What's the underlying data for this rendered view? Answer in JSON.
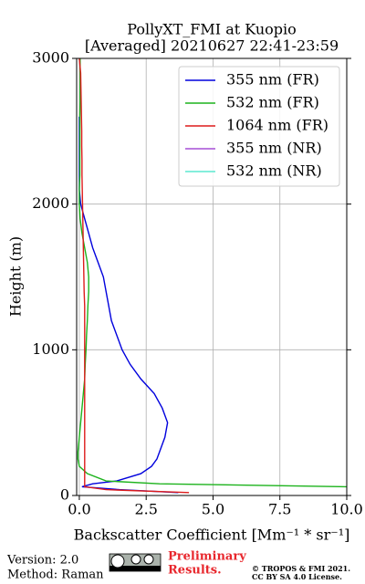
{
  "chart_data": {
    "type": "line",
    "title": [
      "PollyXT_FMI at Kuopio",
      "[Averaged] 20210627 22:41-23:59"
    ],
    "xlabel": "Backscatter Coefficient [Mm⁻¹ * sr⁻¹]",
    "ylabel": "Height (m)",
    "heights": [
      20,
      40,
      60,
      80,
      100,
      150,
      200,
      250,
      300,
      400,
      500,
      600,
      700,
      800,
      900,
      1000,
      1100,
      1200,
      1300,
      1400,
      1500,
      1600,
      1700,
      1800,
      1900,
      2000,
      2100,
      2200,
      2300,
      2400,
      2500,
      2600,
      2700,
      2800,
      2900,
      3000
    ],
    "series": [
      {
        "name": "355 nm (FR)",
        "color": "#0000dd",
        "values": [
          3.7,
          1.5,
          0.1,
          0.5,
          1.4,
          2.3,
          2.7,
          2.9,
          3.0,
          3.2,
          3.3,
          3.1,
          2.8,
          2.3,
          1.9,
          1.6,
          1.4,
          1.2,
          1.1,
          1.0,
          0.9,
          0.7,
          0.5,
          0.35,
          0.2,
          0.05,
          0,
          0,
          0,
          0,
          0,
          0,
          null,
          null,
          null,
          null
        ]
      },
      {
        "name": "532 nm (FR)",
        "color": "#1db31d",
        "values": [
          10.5,
          10.2,
          10.0,
          3.0,
          1.0,
          0.3,
          0.0,
          -0.05,
          -0.05,
          0.0,
          0.05,
          0.1,
          0.15,
          0.2,
          0.22,
          0.25,
          0.27,
          0.3,
          0.32,
          0.35,
          0.35,
          0.3,
          0.2,
          0.1,
          0.03,
          0.0,
          0.0,
          0.02,
          0.02,
          0.02,
          0.02,
          0.02,
          0.03,
          0.03,
          0.03,
          0.03
        ]
      },
      {
        "name": "1064 nm (FR)",
        "color": "#dd1c1c",
        "values": [
          4.1,
          1.0,
          0.2,
          0.2,
          0.2,
          0.2,
          0.2,
          0.2,
          0.2,
          0.2,
          0.2,
          0.2,
          0.2,
          0.2,
          0.2,
          0.2,
          0.2,
          0.2,
          0.2,
          0.18,
          0.17,
          0.16,
          0.15,
          0.14,
          0.13,
          0.12,
          0.11,
          0.1,
          0.1,
          0.09,
          0.09,
          0.08,
          0.07,
          0.06,
          0.05,
          0.0
        ]
      },
      {
        "name": "355 nm (NR)",
        "color": "#a64fd6",
        "values": [
          null,
          null,
          null,
          null,
          null,
          null,
          null,
          null,
          null,
          null,
          null,
          null,
          null,
          null,
          null,
          null,
          null,
          null,
          null,
          null,
          null,
          null,
          null,
          null,
          null,
          null,
          null,
          null,
          null,
          null,
          null,
          null,
          null,
          null,
          null,
          null
        ]
      },
      {
        "name": "532 nm (NR)",
        "color": "#5ce8d0",
        "values": [
          null,
          null,
          null,
          null,
          null,
          null,
          null,
          null,
          null,
          null,
          null,
          null,
          null,
          null,
          null,
          null,
          null,
          null,
          null,
          null,
          null,
          null,
          null,
          null,
          null,
          null,
          null,
          null,
          null,
          null,
          null,
          null,
          null,
          null,
          null,
          null
        ]
      }
    ],
    "xlim": [
      -0.1,
      10
    ],
    "ylim": [
      0,
      3000
    ],
    "xticks": [
      {
        "value": 0,
        "label": "0.0"
      },
      {
        "value": 2.5,
        "label": "2.5"
      },
      {
        "value": 5,
        "label": "5.0"
      },
      {
        "value": 7.5,
        "label": "7.5"
      },
      {
        "value": 10,
        "label": "10.0"
      }
    ],
    "yticks": [
      0,
      1000,
      2000,
      3000
    ],
    "grid": true,
    "legend": "upper right"
  },
  "footer": {
    "version": "Version: 2.0",
    "method": "Method: Raman",
    "notice": [
      "Preliminary",
      "Results."
    ],
    "copyright": [
      "© TROPOS & FMI 2021.",
      "CC BY SA 4.0 License."
    ]
  }
}
